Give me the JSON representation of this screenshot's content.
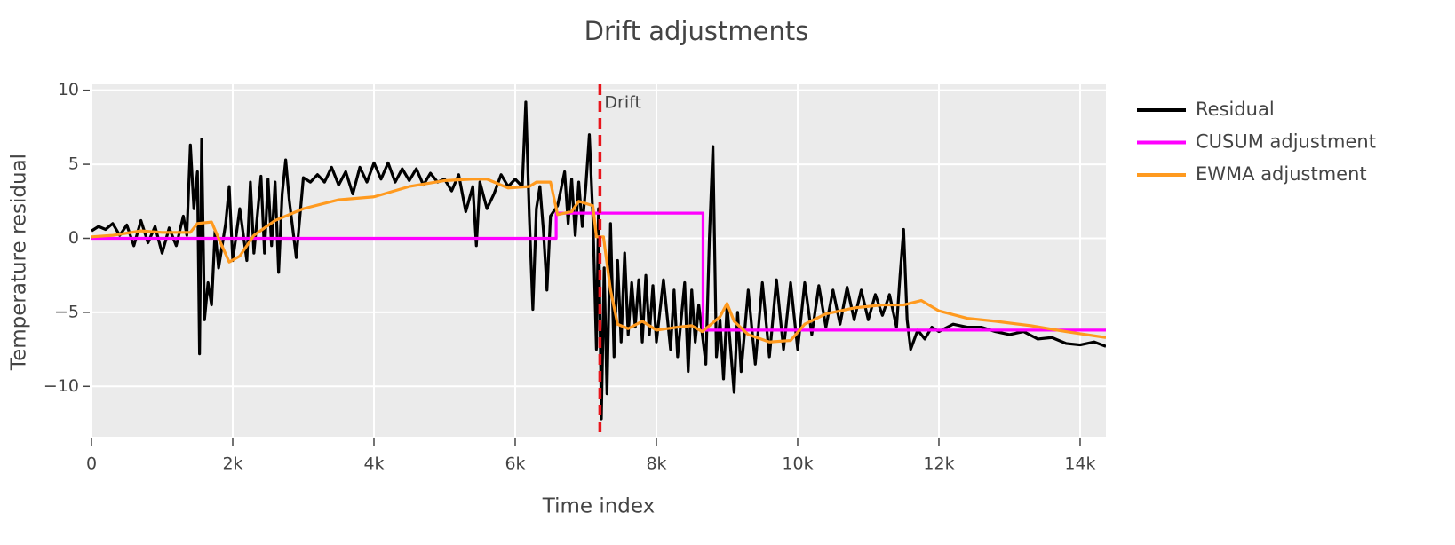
{
  "chart_data": {
    "type": "line",
    "title": "Drift adjustments",
    "x_label": "Time index",
    "y_label": "Temperature residual",
    "xlim": [
      0,
      14365
    ],
    "ylim": [
      -13.4,
      10.4
    ],
    "xticks": [
      0,
      {
        "value": 2000,
        "label": "2k"
      },
      {
        "value": 4000,
        "label": "4k"
      },
      {
        "value": 6000,
        "label": "6k"
      },
      {
        "value": 8000,
        "label": "8k"
      },
      {
        "value": 10000,
        "label": "10k"
      },
      {
        "value": 12000,
        "label": "12k"
      },
      {
        "value": 14000,
        "label": "14k"
      }
    ],
    "yticks": [
      {
        "value": -10,
        "label": "−10"
      },
      {
        "value": -5,
        "label": "−5"
      },
      0,
      5,
      10
    ],
    "grid": true,
    "legend": "right",
    "series": [
      {
        "name": "Residual",
        "color": "#000000",
        "x": [
          0,
          100,
          200,
          300,
          400,
          500,
          600,
          700,
          800,
          900,
          1000,
          1100,
          1200,
          1300,
          1350,
          1400,
          1450,
          1500,
          1530,
          1560,
          1600,
          1650,
          1700,
          1750,
          1800,
          1900,
          1950,
          2000,
          2100,
          2200,
          2250,
          2300,
          2400,
          2450,
          2500,
          2550,
          2600,
          2650,
          2700,
          2750,
          2800,
          2900,
          3000,
          3100,
          3200,
          3300,
          3400,
          3500,
          3600,
          3700,
          3800,
          3900,
          4000,
          4100,
          4200,
          4300,
          4400,
          4500,
          4600,
          4700,
          4800,
          4900,
          5000,
          5100,
          5200,
          5300,
          5400,
          5450,
          5500,
          5600,
          5700,
          5800,
          5900,
          6000,
          6100,
          6150,
          6200,
          6250,
          6300,
          6350,
          6400,
          6450,
          6500,
          6600,
          6700,
          6750,
          6800,
          6850,
          6900,
          6950,
          7000,
          7050,
          7100,
          7150,
          7180,
          7220,
          7260,
          7300,
          7350,
          7400,
          7450,
          7500,
          7550,
          7600,
          7650,
          7700,
          7750,
          7800,
          7850,
          7900,
          7950,
          8000,
          8100,
          8200,
          8250,
          8300,
          8400,
          8450,
          8500,
          8550,
          8600,
          8700,
          8750,
          8800,
          8850,
          8900,
          8950,
          9000,
          9100,
          9150,
          9200,
          9300,
          9400,
          9500,
          9600,
          9700,
          9800,
          9900,
          10000,
          10100,
          10200,
          10300,
          10400,
          10500,
          10600,
          10700,
          10800,
          10900,
          11000,
          11100,
          11200,
          11300,
          11400,
          11450,
          11500,
          11550,
          11600,
          11700,
          11800,
          11900,
          12000,
          12200,
          12400,
          12600,
          12800,
          13000,
          13200,
          13400,
          13600,
          13800,
          14000,
          14200,
          14365
        ],
        "values": [
          0.5,
          0.8,
          0.6,
          1.0,
          0.2,
          0.9,
          -0.5,
          1.2,
          -0.3,
          0.8,
          -1.0,
          0.7,
          -0.5,
          1.5,
          0.2,
          6.3,
          2.0,
          4.5,
          -7.8,
          6.7,
          -5.5,
          -3.0,
          -4.5,
          0.5,
          -2.0,
          1.0,
          3.5,
          -1.5,
          2.0,
          -1.5,
          3.8,
          -1.0,
          4.2,
          -1.0,
          4.0,
          -0.5,
          3.8,
          -2.3,
          3.0,
          5.3,
          2.6,
          -1.3,
          4.1,
          3.8,
          4.3,
          3.8,
          4.8,
          3.6,
          4.5,
          3.0,
          4.8,
          3.8,
          5.1,
          4.0,
          5.1,
          3.8,
          4.7,
          3.9,
          4.7,
          3.6,
          4.4,
          3.8,
          4.0,
          3.2,
          4.3,
          1.8,
          3.5,
          -0.5,
          3.8,
          2.0,
          3.0,
          4.3,
          3.5,
          4.0,
          3.5,
          9.2,
          1.5,
          -4.8,
          2.0,
          3.5,
          0.5,
          -3.5,
          1.5,
          2.2,
          4.5,
          1.0,
          4.0,
          0.2,
          3.8,
          0.8,
          3.5,
          7.0,
          1.5,
          -7.5,
          2.0,
          -12.2,
          -2.0,
          -10.5,
          1.0,
          -8.0,
          -1.5,
          -7.0,
          -1.0,
          -6.5,
          -3.0,
          -6.0,
          -2.8,
          -7.0,
          -2.5,
          -6.5,
          -3.2,
          -7.0,
          -2.8,
          -7.5,
          -3.5,
          -8.0,
          -3.0,
          -9.0,
          -3.5,
          -7.0,
          -4.5,
          -8.5,
          0.0,
          6.2,
          -8.0,
          -5.5,
          -9.5,
          -4.5,
          -10.4,
          -5.0,
          -9.0,
          -3.5,
          -8.5,
          -3.0,
          -8.0,
          -2.8,
          -7.5,
          -3.0,
          -7.5,
          -3.0,
          -6.5,
          -3.2,
          -6.0,
          -3.5,
          -5.8,
          -3.3,
          -5.5,
          -3.5,
          -5.5,
          -3.8,
          -5.2,
          -3.8,
          -6.0,
          -2.5,
          0.6,
          -5.5,
          -7.5,
          -6.2,
          -6.8,
          -6.0,
          -6.3,
          -5.8,
          -6.0,
          -6.0,
          -6.3,
          -6.5,
          -6.3,
          -6.8,
          -6.7,
          -7.1,
          -7.2,
          -7.0,
          -7.3
        ]
      },
      {
        "name": "CUSUM adjustment",
        "color": "#ff00ff",
        "x": [
          0,
          6580,
          6580,
          8660,
          8660,
          14365
        ],
        "values": [
          0,
          0,
          1.7,
          1.7,
          -6.2,
          -6.2
        ]
      },
      {
        "name": "EWMA adjustment",
        "color": "#ff9a1f",
        "x": [
          0,
          300,
          700,
          1000,
          1400,
          1500,
          1700,
          1800,
          1950,
          2100,
          2300,
          2600,
          3000,
          3500,
          4000,
          4500,
          5000,
          5400,
          5600,
          5900,
          6200,
          6300,
          6500,
          6600,
          6800,
          6900,
          7100,
          7150,
          7250,
          7350,
          7450,
          7600,
          7800,
          8000,
          8300,
          8500,
          8650,
          8900,
          9000,
          9100,
          9300,
          9600,
          9900,
          10100,
          10400,
          10800,
          11200,
          11500,
          11750,
          12000,
          12400,
          12800,
          13300,
          13800,
          14365
        ],
        "values": [
          0.1,
          0.2,
          0.5,
          0.4,
          0.4,
          1.0,
          1.1,
          0.0,
          -1.6,
          -1.2,
          0.2,
          1.2,
          2.0,
          2.6,
          2.8,
          3.5,
          3.9,
          4.0,
          4.0,
          3.4,
          3.5,
          3.8,
          3.8,
          1.6,
          1.8,
          2.5,
          2.2,
          0.1,
          0.1,
          -3.5,
          -5.8,
          -6.1,
          -5.6,
          -6.2,
          -6.0,
          -5.9,
          -6.3,
          -5.3,
          -4.4,
          -5.6,
          -6.5,
          -7.0,
          -6.9,
          -5.8,
          -5.1,
          -4.7,
          -4.5,
          -4.5,
          -4.2,
          -4.9,
          -5.4,
          -5.6,
          -5.9,
          -6.3,
          -6.7
        ]
      }
    ],
    "annotations": [
      {
        "x": 7200,
        "text": "Drift",
        "color": "#e8141b"
      }
    ]
  }
}
